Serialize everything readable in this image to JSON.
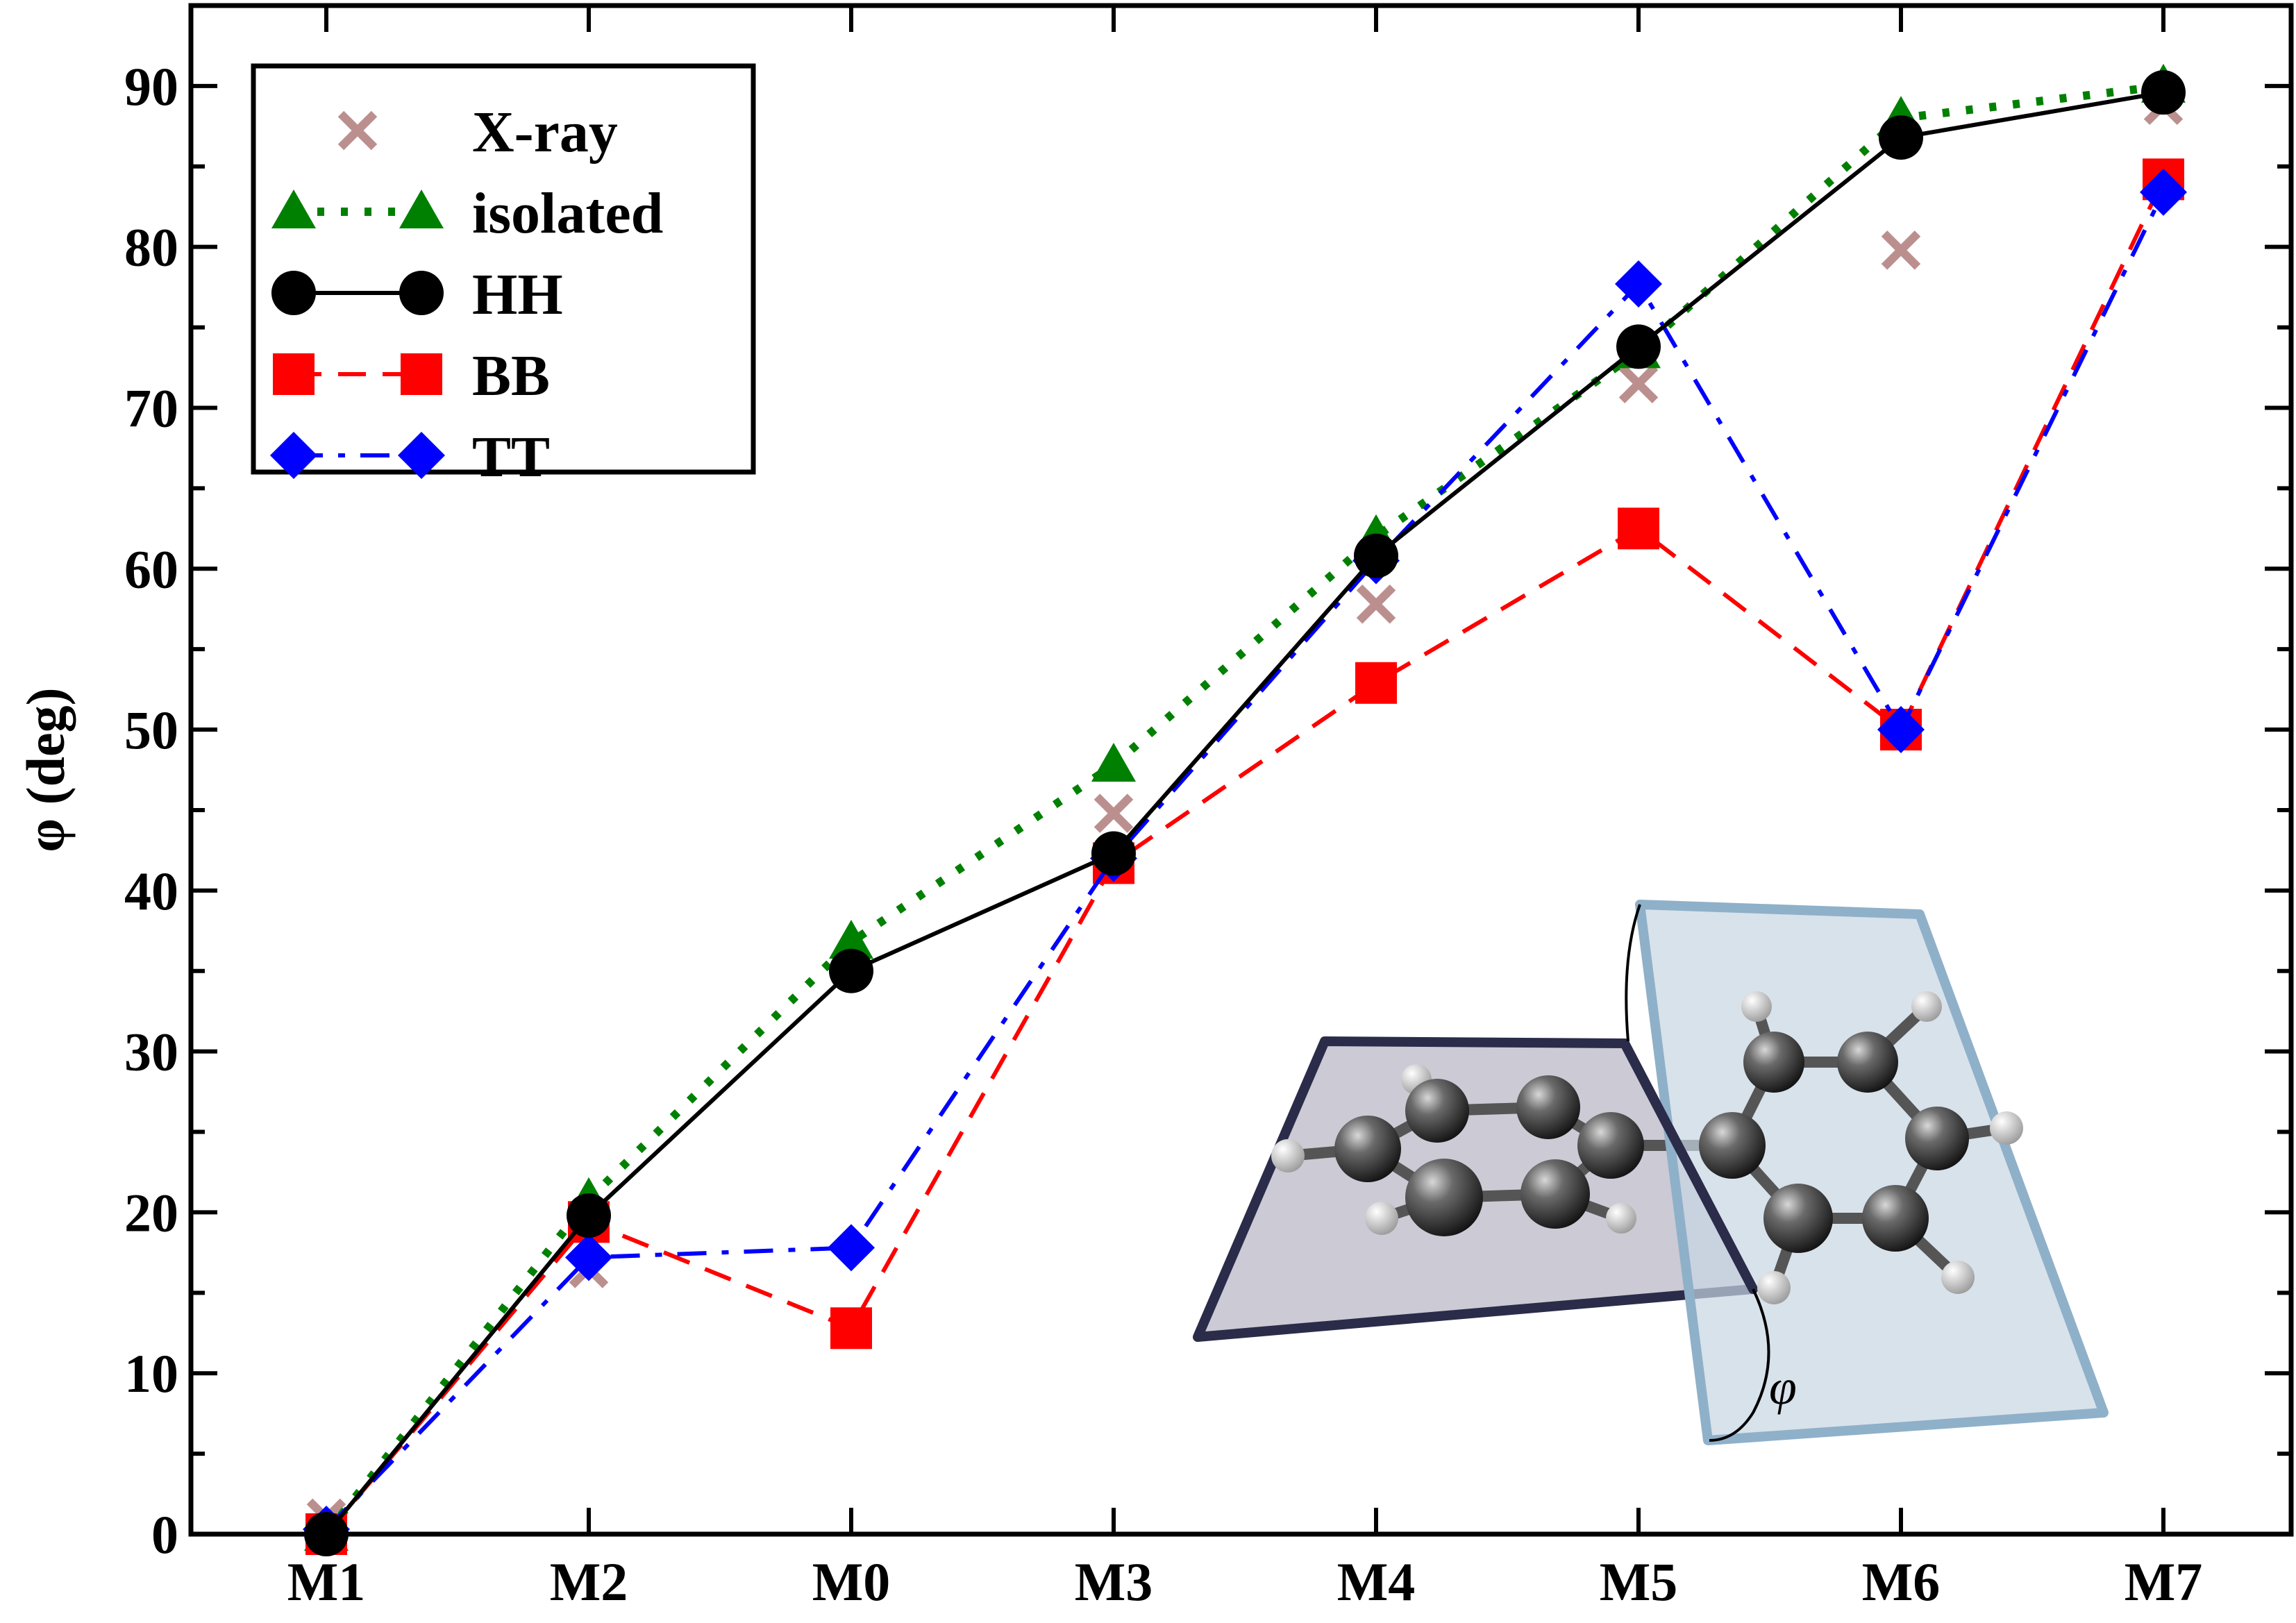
{
  "chart_data": {
    "type": "line",
    "ylabel": "φ (deg)",
    "xlabel": "",
    "categories": [
      "M1",
      "M2",
      "M0",
      "M3",
      "M4",
      "M5",
      "M6",
      "M7"
    ],
    "ylim": [
      0,
      95
    ],
    "yticks": [
      0,
      10,
      20,
      30,
      40,
      50,
      60,
      70,
      80,
      90
    ],
    "grid": false,
    "legend_position": "top-left",
    "series": [
      {
        "name": "X-ray",
        "marker": "x",
        "line": "none",
        "color": "#bc8f8f",
        "values": [
          1,
          16.5,
          null,
          44.8,
          57.8,
          71.5,
          79.8,
          88.8
        ]
      },
      {
        "name": "isolated",
        "marker": "triangle",
        "line": "dotted",
        "color": "#008000",
        "values": [
          0,
          20.8,
          36.8,
          47.8,
          62,
          73.5,
          88,
          90
        ]
      },
      {
        "name": "HH",
        "marker": "circle",
        "line": "solid",
        "color": "#000000",
        "values": [
          0,
          19.8,
          35,
          42.3,
          60.8,
          73.8,
          86.8,
          89.6
        ]
      },
      {
        "name": "BB",
        "marker": "square",
        "line": "dashed",
        "color": "#ff0000",
        "values": [
          0,
          19.4,
          12.8,
          41.7,
          52.9,
          62.5,
          50,
          84.2
        ]
      },
      {
        "name": "TT",
        "marker": "diamond",
        "line": "dashdot",
        "color": "#0000ff",
        "values": [
          0.3,
          17.2,
          17.8,
          42,
          60.5,
          77.7,
          50,
          83.4
        ]
      }
    ],
    "inset": {
      "angle_label": "φ"
    }
  }
}
